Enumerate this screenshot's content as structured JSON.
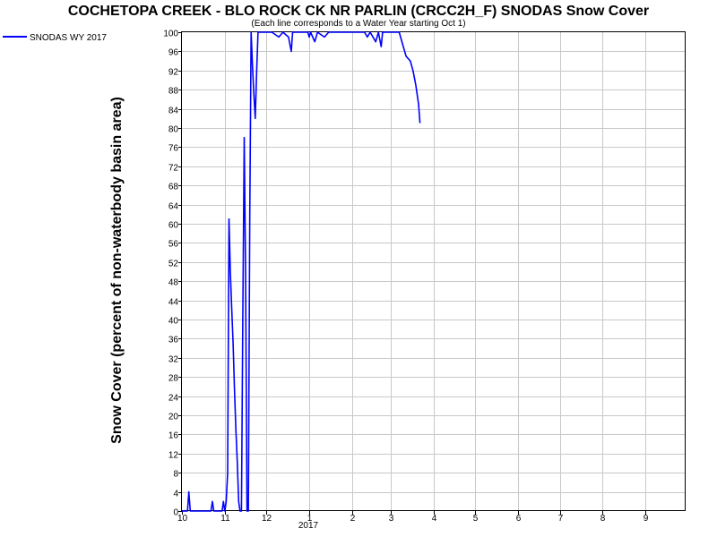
{
  "chart_data": {
    "type": "line",
    "title": "COCHETOPA CREEK - BLO ROCK CK NR PARLIN (CRCC2H_F) SNODAS Snow Cover",
    "subtitle": "(Each line corresponds to a Water Year starting Oct 1)",
    "ylabel": "Snow Cover (percent of non-waterbody basin area)",
    "xlabel": "",
    "ylim": [
      0,
      100
    ],
    "xlim": [
      "2016-10-01",
      "2017-09-30"
    ],
    "y_ticks": [
      0,
      4,
      8,
      12,
      16,
      20,
      24,
      28,
      32,
      36,
      40,
      44,
      48,
      52,
      56,
      60,
      64,
      68,
      72,
      76,
      80,
      84,
      88,
      92,
      96,
      100
    ],
    "x_ticks": [
      {
        "date": "2016-10-01",
        "label": "10"
      },
      {
        "date": "2016-11-01",
        "label": "11"
      },
      {
        "date": "2016-12-01",
        "label": "12"
      },
      {
        "date": "2017-01-01",
        "label": "1"
      },
      {
        "date": "2017-02-01",
        "label": "2"
      },
      {
        "date": "2017-03-01",
        "label": "3"
      },
      {
        "date": "2017-04-01",
        "label": "4"
      },
      {
        "date": "2017-05-01",
        "label": "5"
      },
      {
        "date": "2017-06-01",
        "label": "6"
      },
      {
        "date": "2017-07-01",
        "label": "7"
      },
      {
        "date": "2017-08-01",
        "label": "8"
      },
      {
        "date": "2017-09-01",
        "label": "9"
      }
    ],
    "year_label": "2017",
    "grid": true,
    "legend_position": "top-left",
    "series": [
      {
        "name": "SNODAS WY 2017",
        "color": "#0000ff",
        "points": [
          [
            "2016-10-01",
            0
          ],
          [
            "2016-10-05",
            0
          ],
          [
            "2016-10-06",
            4
          ],
          [
            "2016-10-07",
            0
          ],
          [
            "2016-10-22",
            0
          ],
          [
            "2016-10-23",
            2
          ],
          [
            "2016-10-24",
            0
          ],
          [
            "2016-10-30",
            0
          ],
          [
            "2016-10-31",
            2
          ],
          [
            "2016-11-01",
            0
          ],
          [
            "2016-11-02",
            2
          ],
          [
            "2016-11-03",
            8
          ],
          [
            "2016-11-04",
            61
          ],
          [
            "2016-11-05",
            50
          ],
          [
            "2016-11-06",
            42
          ],
          [
            "2016-11-07",
            35
          ],
          [
            "2016-11-08",
            25
          ],
          [
            "2016-11-09",
            17
          ],
          [
            "2016-11-10",
            10
          ],
          [
            "2016-11-11",
            2
          ],
          [
            "2016-11-12",
            0
          ],
          [
            "2016-11-13",
            0
          ],
          [
            "2016-11-14",
            40
          ],
          [
            "2016-11-15",
            78
          ],
          [
            "2016-11-16",
            50
          ],
          [
            "2016-11-17",
            0
          ],
          [
            "2016-11-18",
            0
          ],
          [
            "2016-11-19",
            62
          ],
          [
            "2016-11-20",
            100
          ],
          [
            "2016-11-21",
            93
          ],
          [
            "2016-11-22",
            87
          ],
          [
            "2016-11-23",
            82
          ],
          [
            "2016-11-24",
            92
          ],
          [
            "2016-11-25",
            100
          ],
          [
            "2016-12-05",
            100
          ],
          [
            "2016-12-10",
            99
          ],
          [
            "2016-12-13",
            100
          ],
          [
            "2016-12-17",
            99
          ],
          [
            "2016-12-19",
            96
          ],
          [
            "2016-12-20",
            100
          ],
          [
            "2016-12-31",
            100
          ],
          [
            "2017-01-01",
            99
          ],
          [
            "2017-01-02",
            100
          ],
          [
            "2017-01-05",
            98
          ],
          [
            "2017-01-07",
            100
          ],
          [
            "2017-01-12",
            99
          ],
          [
            "2017-01-15",
            100
          ],
          [
            "2017-02-10",
            100
          ],
          [
            "2017-02-12",
            99
          ],
          [
            "2017-02-14",
            100
          ],
          [
            "2017-02-18",
            98
          ],
          [
            "2017-02-20",
            100
          ],
          [
            "2017-02-22",
            97
          ],
          [
            "2017-02-23",
            100
          ],
          [
            "2017-03-01",
            100
          ],
          [
            "2017-03-07",
            100
          ],
          [
            "2017-03-10",
            97
          ],
          [
            "2017-03-12",
            95
          ],
          [
            "2017-03-15",
            94
          ],
          [
            "2017-03-17",
            92
          ],
          [
            "2017-03-19",
            89
          ],
          [
            "2017-03-21",
            85
          ],
          [
            "2017-03-22",
            81
          ]
        ]
      }
    ]
  }
}
